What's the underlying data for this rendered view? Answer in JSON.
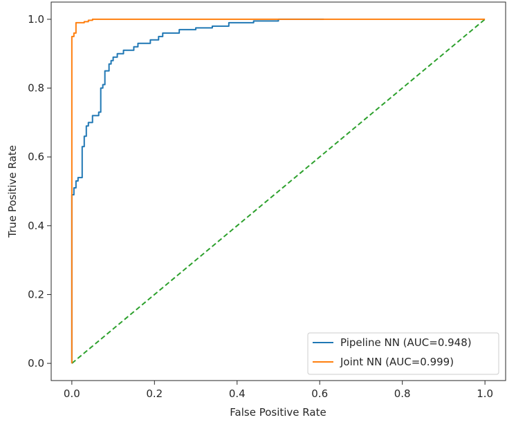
{
  "chart_data": {
    "type": "line",
    "title": "",
    "xlabel": "False Positive Rate",
    "ylabel": "True Positive Rate",
    "xlim": [
      -0.05,
      1.05
    ],
    "ylim": [
      -0.05,
      1.05
    ],
    "xticks": [
      0.0,
      0.2,
      0.4,
      0.6,
      0.8,
      1.0
    ],
    "yticks": [
      0.0,
      0.2,
      0.4,
      0.6,
      0.8,
      1.0
    ],
    "xtick_labels": [
      "0.0",
      "0.2",
      "0.4",
      "0.6",
      "0.8",
      "1.0"
    ],
    "ytick_labels": [
      "0.0",
      "0.2",
      "0.4",
      "0.6",
      "0.8",
      "1.0"
    ],
    "grid": false,
    "legend_position": "lower-right",
    "series": [
      {
        "name": "Pipeline NN (AUC=0.948)",
        "color": "#1f77b4",
        "style": "solid",
        "x": [
          0.0,
          0.0,
          0.005,
          0.005,
          0.01,
          0.01,
          0.015,
          0.015,
          0.025,
          0.025,
          0.03,
          0.03,
          0.035,
          0.035,
          0.04,
          0.04,
          0.05,
          0.05,
          0.065,
          0.065,
          0.07,
          0.07,
          0.075,
          0.075,
          0.08,
          0.08,
          0.09,
          0.09,
          0.095,
          0.095,
          0.1,
          0.1,
          0.11,
          0.11,
          0.125,
          0.125,
          0.15,
          0.15,
          0.16,
          0.16,
          0.19,
          0.19,
          0.21,
          0.21,
          0.22,
          0.22,
          0.26,
          0.26,
          0.3,
          0.3,
          0.34,
          0.34,
          0.38,
          0.38,
          0.44,
          0.44,
          0.5,
          0.5,
          0.61
        ],
        "y": [
          0.0,
          0.49,
          0.49,
          0.51,
          0.51,
          0.53,
          0.53,
          0.54,
          0.54,
          0.63,
          0.63,
          0.66,
          0.66,
          0.69,
          0.69,
          0.7,
          0.7,
          0.72,
          0.72,
          0.73,
          0.73,
          0.8,
          0.8,
          0.81,
          0.81,
          0.85,
          0.85,
          0.87,
          0.87,
          0.88,
          0.88,
          0.89,
          0.89,
          0.9,
          0.9,
          0.91,
          0.91,
          0.92,
          0.92,
          0.93,
          0.93,
          0.94,
          0.94,
          0.95,
          0.95,
          0.96,
          0.96,
          0.97,
          0.97,
          0.975,
          0.975,
          0.98,
          0.98,
          0.99,
          0.99,
          0.995,
          0.995,
          1.0,
          1.0
        ]
      },
      {
        "name": "Joint NN (AUC=0.999)",
        "color": "#ff7f0e",
        "style": "solid",
        "x": [
          0.0,
          0.0,
          0.005,
          0.005,
          0.01,
          0.01,
          0.03,
          0.03,
          0.04,
          0.04,
          0.05,
          0.05,
          1.0
        ],
        "y": [
          0.0,
          0.95,
          0.95,
          0.96,
          0.96,
          0.99,
          0.99,
          0.993,
          0.993,
          0.997,
          0.997,
          1.0,
          1.0
        ]
      },
      {
        "name": "",
        "color": "#2ca02c",
        "style": "dashed",
        "x": [
          0.0,
          1.0
        ],
        "y": [
          0.0,
          1.0
        ]
      }
    ]
  }
}
